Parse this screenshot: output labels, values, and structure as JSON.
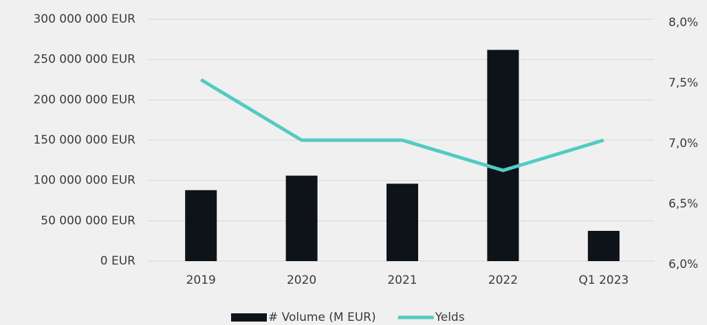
{
  "chart_data": {
    "type": "bar",
    "categories": [
      "2019",
      "2020",
      "2021",
      "2022",
      "Q1 2023"
    ],
    "series": [
      {
        "name": "# Volume (M EUR)",
        "type": "bar",
        "color": "#0d1318",
        "values": [
          88000000,
          106000000,
          96000000,
          262000000,
          37500000
        ]
      },
      {
        "name": "Yelds",
        "type": "line",
        "axis": "y2",
        "color": "#52cbc2",
        "values": [
          7.5,
          7.0,
          7.0,
          6.75,
          7.0
        ]
      }
    ],
    "ylim": [
      0,
      300000000
    ],
    "yticks": [
      {
        "value": 0,
        "label": "0 EUR"
      },
      {
        "value": 50000000,
        "label": "50 000 000 EUR"
      },
      {
        "value": 100000000,
        "label": "100 000 000 EUR"
      },
      {
        "value": 150000000,
        "label": "150 000 000 EUR"
      },
      {
        "value": 200000000,
        "label": "200 000 000 EUR"
      },
      {
        "value": 250000000,
        "label": "250 000 000 EUR"
      },
      {
        "value": 300000000,
        "label": "300 000 000 EUR"
      }
    ],
    "y2lim": [
      6.0,
      8.0
    ],
    "y2ticks": [
      {
        "value": 6.0,
        "label": "6,0%"
      },
      {
        "value": 6.5,
        "label": "6,5%"
      },
      {
        "value": 7.0,
        "label": "7,0%"
      },
      {
        "value": 7.5,
        "label": "7,5%"
      },
      {
        "value": 8.0,
        "label": "8,0%"
      }
    ],
    "grid": true
  }
}
